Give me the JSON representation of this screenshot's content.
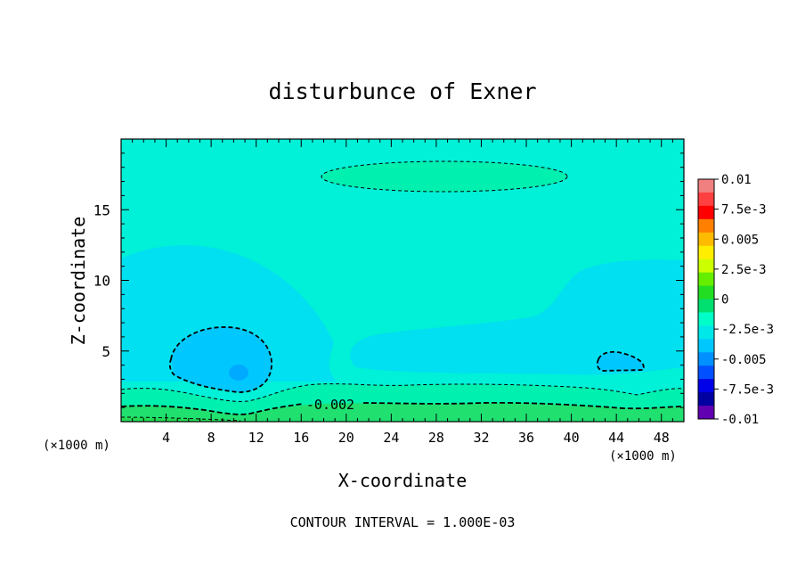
{
  "chart_data": {
    "type": "contour",
    "title": "disturbunce of Exner",
    "xlabel": "X-coordinate",
    "ylabel": "Z-coordinate",
    "x_unit": "(×1000 m)",
    "x_unit_right": "(×1000 m)",
    "xlim": [
      0,
      50
    ],
    "ylim": [
      0,
      20
    ],
    "x_ticks": [
      4,
      8,
      12,
      16,
      20,
      24,
      28,
      32,
      36,
      40,
      44,
      48
    ],
    "y_ticks": [
      5,
      10,
      15
    ],
    "footer": "CONTOUR INTERVAL = 1.000E-03",
    "contour_interval": 0.001,
    "contour_labels": [
      {
        "text": "-0.002",
        "x": 21.0,
        "y": 1.3
      }
    ],
    "colorbar": {
      "min": -0.01,
      "max": 0.01,
      "labels": [
        "0.01",
        "7.5e-3",
        "0.005",
        "2.5e-3",
        "0",
        "-2.5e-3",
        "-0.005",
        "-7.5e-3",
        "-0.01"
      ],
      "colors": [
        "#f08080",
        "#ff4040",
        "#ff0000",
        "#ff8000",
        "#ffbb00",
        "#ffee00",
        "#ccff00",
        "#66ee00",
        "#22dd22",
        "#00e070",
        "#00ffc8",
        "#00e8e8",
        "#00c8ff",
        "#0090ff",
        "#0050ff",
        "#0000e8",
        "#0000a0",
        "#6000b0"
      ]
    },
    "regions": [
      {
        "level": "-0.0025 to -0.002",
        "color": "#00f0d8",
        "desc": "background"
      },
      {
        "level": "-0.003 to -0.0025",
        "color": "#00e0f0",
        "desc": "left lobe and right band"
      },
      {
        "level": "-0.004 to -0.003",
        "color": "#00c8ff",
        "desc": "minimum near x=8, z=4"
      },
      {
        "level": "-0.002 to -0.0015",
        "color": "#00f0b0",
        "desc": "upper ellipse near z=17.5"
      },
      {
        "level": "-0.001 to 0",
        "color": "#20e070",
        "desc": "near-surface layer"
      }
    ]
  }
}
